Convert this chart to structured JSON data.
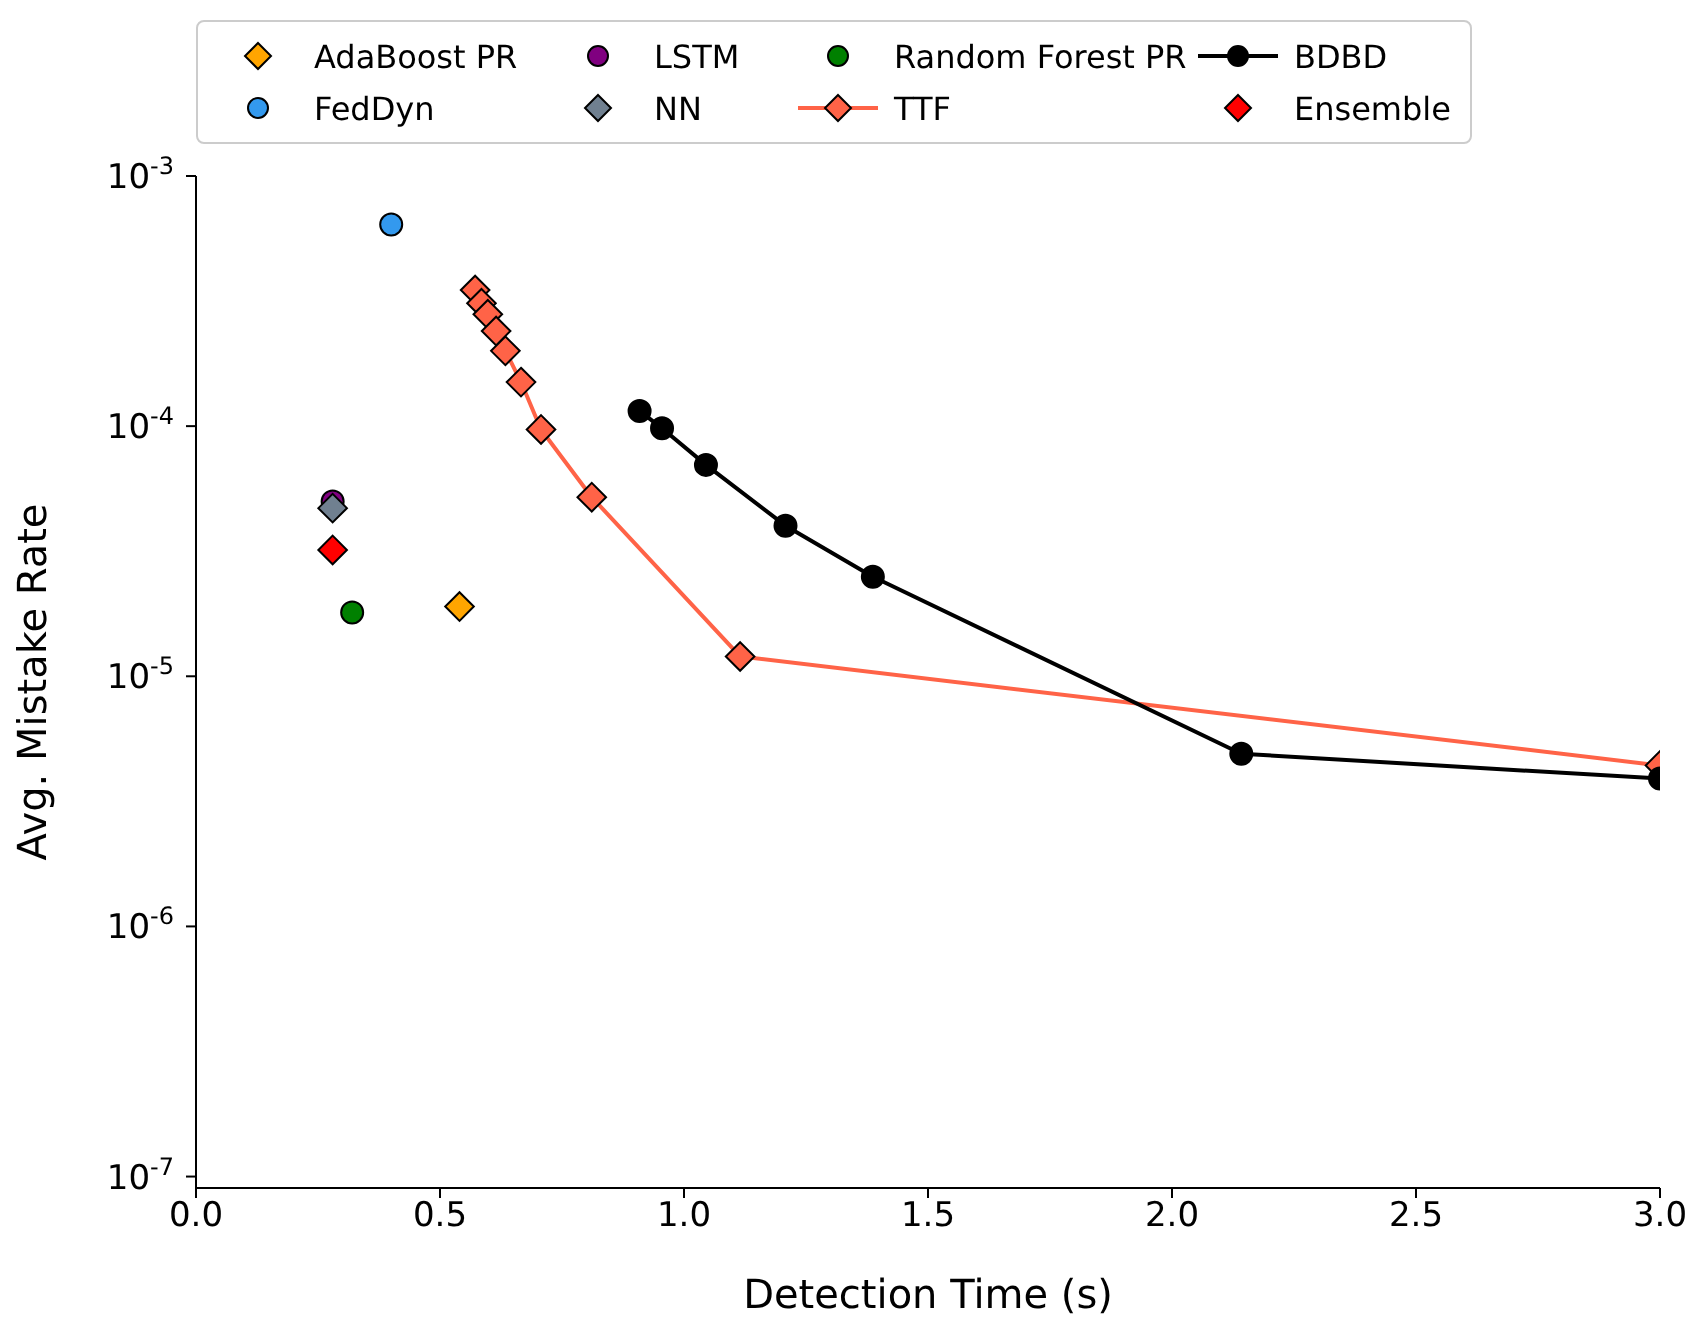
{
  "chart_data": {
    "type": "scatter",
    "xlabel": "Detection Time (s)",
    "ylabel": "Avg. Mistake Rate",
    "log": "y",
    "xlim": [
      0,
      3
    ],
    "xticks": [
      {
        "value": 0,
        "label": "0.0"
      },
      0.5,
      {
        "value": 1,
        "label": "1.0"
      },
      1.5,
      {
        "value": 2,
        "label": "2.0"
      },
      2.5,
      {
        "value": 3,
        "label": "3.0"
      }
    ],
    "ylim": [
      9e-08,
      0.001
    ],
    "yticks": [
      {
        "value": 1e-07,
        "label": "10$^{-7}$"
      },
      {
        "value": 1e-06,
        "label": "10$^{-6}$"
      },
      {
        "value": 1e-05,
        "label": "10$^{-5}$"
      },
      {
        "value": 0.0001,
        "label": "10$^{-4}$"
      },
      {
        "value": 0.001,
        "label": "10$^{-3}$"
      }
    ],
    "grid": false,
    "legend": "top",
    "series": [
      {
        "name": "AdaBoost PR",
        "marker": "diamond",
        "color": "#ffa500",
        "x": [
          0.54
        ],
        "values": [
          1.9e-05
        ]
      },
      {
        "name": "FedDyn",
        "marker": "circle",
        "color": "#3399ee",
        "x": [
          0.4
        ],
        "values": [
          0.00064
        ]
      },
      {
        "name": "LSTM",
        "marker": "circle",
        "color": "#800080",
        "x": [
          0.28
        ],
        "values": [
          5e-05
        ]
      },
      {
        "name": "NN",
        "marker": "diamond",
        "color": "#708090",
        "x": [
          0.28
        ],
        "values": [
          4.7e-05
        ]
      },
      {
        "name": "Random Forest PR",
        "marker": "circle",
        "color": "#008000",
        "x": [
          0.32
        ],
        "values": [
          1.8e-05
        ]
      },
      {
        "name": "TTF",
        "type": "line",
        "marker": "diamond",
        "color": "#ff6347",
        "x": [
          0.572,
          0.585,
          0.598,
          0.615,
          0.634,
          0.666,
          0.707,
          0.811,
          1.115,
          3.0
        ],
        "values": [
          0.00035,
          0.00031,
          0.00028,
          0.00024,
          0.0002,
          0.00015,
          9.7e-05,
          5.2e-05,
          1.2e-05,
          4.4e-06
        ]
      },
      {
        "name": "BDBD",
        "type": "line",
        "marker": "circle",
        "color": "#000000",
        "x": [
          0.909,
          0.955,
          1.045,
          1.208,
          1.387,
          2.142,
          3.0
        ],
        "values": [
          0.000115,
          9.8e-05,
          7e-05,
          4e-05,
          2.5e-05,
          4.9e-06,
          3.9e-06
        ]
      },
      {
        "name": "Ensemble",
        "marker": "diamond",
        "color": "#ff0000",
        "x": [
          0.28
        ],
        "values": [
          3.2e-05
        ]
      }
    ]
  }
}
